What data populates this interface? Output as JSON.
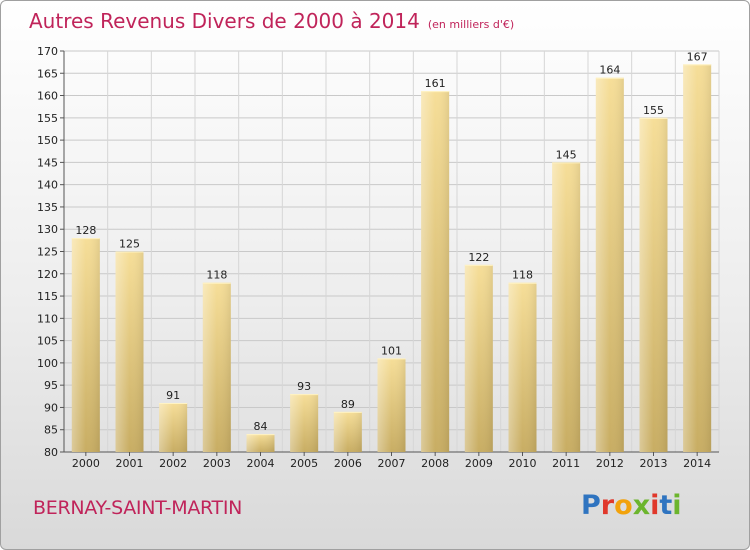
{
  "header": {
    "title": "Autres Revenus Divers de 2000 à 2014",
    "subtitle": "(en milliers d'€)"
  },
  "footer": {
    "commune": "BERNAY-SAINT-MARTIN",
    "logo_text": "Proxiti",
    "logo_colors": [
      "#2f74c0",
      "#e0382b",
      "#f2a20c",
      "#6cb52d",
      "#e0382b",
      "#2f74c0",
      "#6cb52d"
    ]
  },
  "chart_data": {
    "type": "bar",
    "categories": [
      "2000",
      "2001",
      "2002",
      "2003",
      "2004",
      "2005",
      "2006",
      "2007",
      "2008",
      "2009",
      "2010",
      "2011",
      "2012",
      "2013",
      "2014"
    ],
    "values": [
      128,
      125,
      91,
      118,
      84,
      93,
      89,
      101,
      161,
      122,
      118,
      145,
      164,
      155,
      167
    ],
    "title": "Autres Revenus Divers de 2000 à 2014",
    "xlabel": "",
    "ylabel": "",
    "ylim": [
      80,
      170
    ],
    "yticks": [
      80,
      85,
      90,
      95,
      100,
      105,
      110,
      115,
      120,
      125,
      130,
      135,
      140,
      145,
      150,
      155,
      160,
      165,
      170
    ],
    "grid": true,
    "bar_color": "#e9cf86"
  }
}
